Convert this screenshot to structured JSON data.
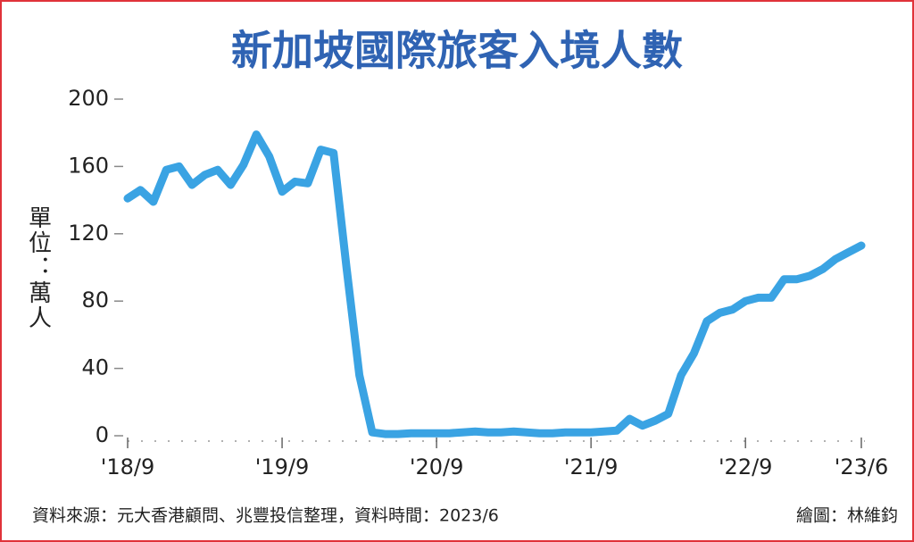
{
  "chart_data": {
    "type": "line",
    "title": "新加坡國際旅客入境人數",
    "y_label": "單位：萬人",
    "source": "資料來源：元大香港顧問、兆豐投信整理，資料時間：2023/6",
    "credit": "繪圖：林維鈞",
    "categories": [
      "'18/9",
      null,
      null,
      null,
      null,
      null,
      null,
      null,
      null,
      null,
      null,
      null,
      "'19/9",
      null,
      null,
      null,
      null,
      null,
      null,
      null,
      null,
      null,
      null,
      null,
      "'20/9",
      null,
      null,
      null,
      null,
      null,
      null,
      null,
      null,
      null,
      null,
      null,
      "'21/9",
      null,
      null,
      null,
      null,
      null,
      null,
      null,
      null,
      null,
      null,
      null,
      "'22/9",
      null,
      null,
      null,
      null,
      null,
      null,
      null,
      null,
      "'23/6"
    ],
    "series": [
      {
        "name": "入境人數",
        "color": "#3aa3e3",
        "values": [
          141,
          146,
          139,
          158,
          160,
          149,
          155,
          158,
          149,
          161,
          179,
          166,
          145,
          151,
          150,
          170,
          168,
          100,
          36,
          2,
          1,
          1,
          1.5,
          1.5,
          1.5,
          1.5,
          2,
          2.5,
          2,
          2,
          2.5,
          2,
          1.5,
          1.5,
          2,
          2,
          2,
          2.5,
          3,
          10,
          6,
          9,
          13,
          36,
          49,
          68,
          73,
          75,
          80,
          82,
          82,
          93,
          93,
          95,
          99,
          105,
          109,
          113
        ]
      }
    ],
    "ylim": [
      0,
      200
    ],
    "yticks": [
      0,
      40,
      80,
      120,
      160,
      200
    ]
  }
}
